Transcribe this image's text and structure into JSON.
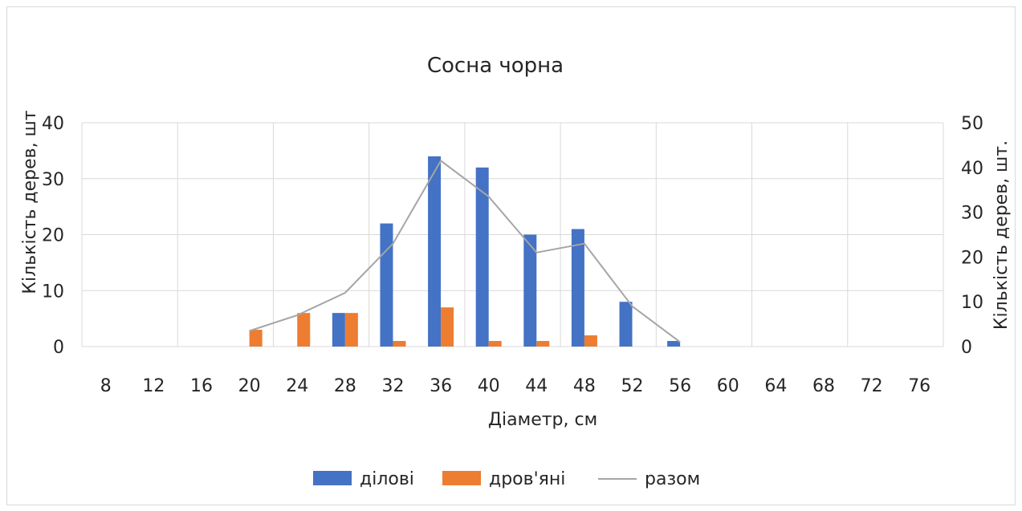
{
  "chart_data": {
    "type": "bar",
    "title": "Сосна чорна",
    "xlabel": "Діаметр, см",
    "ylabel": "Кількість дерев, шт",
    "y2label": "Кількість дерев, шт.",
    "categories": [
      "8",
      "12",
      "16",
      "20",
      "24",
      "28",
      "32",
      "36",
      "40",
      "44",
      "48",
      "52",
      "56",
      "60",
      "64",
      "68",
      "72",
      "76"
    ],
    "ylim": [
      0,
      40
    ],
    "y2lim": [
      0,
      50
    ],
    "yticks": [
      "0",
      "10",
      "20",
      "30",
      "40"
    ],
    "y2ticks": [
      "0",
      "10",
      "20",
      "30",
      "40",
      "50"
    ],
    "grid": true,
    "legend_position": "bottom",
    "series": [
      {
        "name": "ділові",
        "type": "bar",
        "axis": "left",
        "color": "#4472c4",
        "values": [
          0,
          0,
          0,
          0,
          0,
          6,
          22,
          34,
          32,
          20,
          21,
          8,
          1,
          0,
          0,
          0,
          0,
          0
        ]
      },
      {
        "name": "дров'яні",
        "type": "bar",
        "axis": "left",
        "color": "#ed7d31",
        "values": [
          0,
          0,
          0,
          3,
          6,
          6,
          1,
          7,
          1,
          1,
          2,
          0,
          0,
          0,
          0,
          0,
          0,
          0
        ]
      },
      {
        "name": "разом",
        "type": "line",
        "axis": "right",
        "color": "#a5a5a5",
        "x_range": [
          "20",
          "56"
        ],
        "values": [
          null,
          null,
          null,
          3.5,
          7,
          12,
          23,
          41.5,
          33.5,
          21,
          23,
          9,
          1,
          null,
          null,
          null,
          null,
          null
        ]
      }
    ]
  }
}
